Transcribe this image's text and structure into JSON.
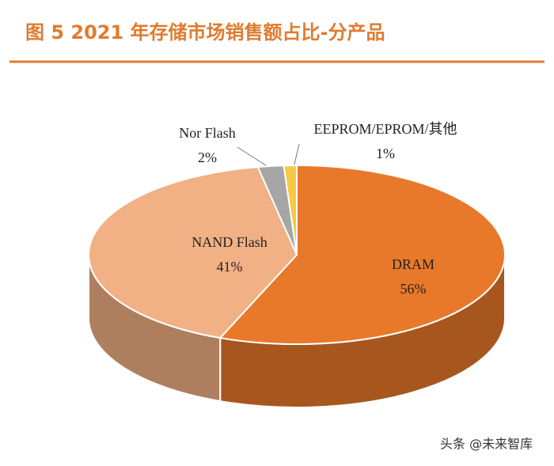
{
  "chart_data": {
    "type": "pie",
    "title": "图 5 2021 年存储市场销售额占比-分产品",
    "categories": [
      "DRAM",
      "NAND Flash",
      "Nor Flash",
      "EEPROM/EPROM/其他"
    ],
    "values": [
      56,
      41,
      2,
      1
    ],
    "value_labels": [
      "56%",
      "41%",
      "2%",
      "1%"
    ],
    "colors": [
      "#e8792a",
      "#f1b184",
      "#a6a6a6",
      "#f6c945"
    ],
    "watermark": "头条 @未来智库"
  }
}
